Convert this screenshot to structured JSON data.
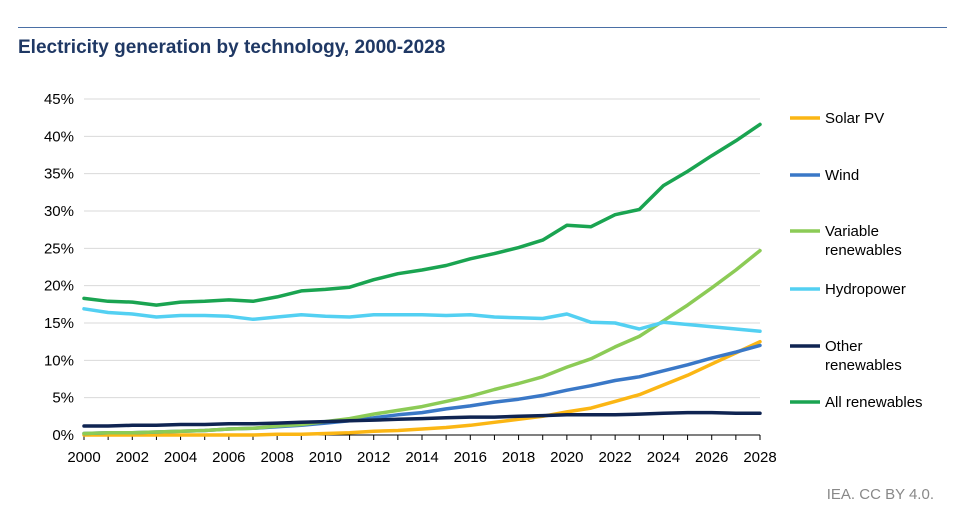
{
  "chart_data": {
    "type": "line",
    "title": "Electricity generation by technology, 2000-2028",
    "xlabel": "",
    "ylabel": "",
    "ylim": [
      0,
      45
    ],
    "xlim": [
      2000,
      2028
    ],
    "grid": true,
    "legend_position": "right",
    "y_ticks": [
      "0%",
      "5%",
      "10%",
      "15%",
      "20%",
      "25%",
      "30%",
      "35%",
      "40%",
      "45%"
    ],
    "x_ticks": [
      "2000",
      "2002",
      "2004",
      "2006",
      "2008",
      "2010",
      "2012",
      "2014",
      "2016",
      "2018",
      "2020",
      "2022",
      "2024",
      "2026",
      "2028"
    ],
    "x": [
      2000,
      2001,
      2002,
      2003,
      2004,
      2005,
      2006,
      2007,
      2008,
      2009,
      2010,
      2011,
      2012,
      2013,
      2014,
      2015,
      2016,
      2017,
      2018,
      2019,
      2020,
      2021,
      2022,
      2023,
      2024,
      2025,
      2026,
      2027,
      2028
    ],
    "series": [
      {
        "name": "Solar PV",
        "legend_lines": [
          "Solar PV"
        ],
        "color": "#fbb614",
        "values": [
          0,
          0,
          0,
          0,
          0,
          0,
          0,
          0,
          0.1,
          0.1,
          0.2,
          0.3,
          0.5,
          0.6,
          0.8,
          1.0,
          1.3,
          1.7,
          2.1,
          2.5,
          3.1,
          3.6,
          4.5,
          5.4,
          6.7,
          8.0,
          9.5,
          11.0,
          12.5
        ]
      },
      {
        "name": "Wind",
        "legend_lines": [
          "Wind"
        ],
        "color": "#3a78c7",
        "values": [
          0.2,
          0.3,
          0.3,
          0.4,
          0.5,
          0.6,
          0.8,
          0.9,
          1.1,
          1.3,
          1.6,
          1.9,
          2.3,
          2.7,
          3.0,
          3.5,
          3.9,
          4.4,
          4.8,
          5.3,
          6.0,
          6.6,
          7.3,
          7.8,
          8.6,
          9.4,
          10.3,
          11.1,
          12.0
        ]
      },
      {
        "name": "Variable renewables",
        "legend_lines": [
          "Variable",
          "renewables"
        ],
        "color": "#8ccb56",
        "values": [
          0.2,
          0.3,
          0.3,
          0.4,
          0.5,
          0.6,
          0.8,
          0.9,
          1.2,
          1.4,
          1.8,
          2.2,
          2.8,
          3.3,
          3.8,
          4.5,
          5.2,
          6.1,
          6.9,
          7.8,
          9.1,
          10.2,
          11.8,
          13.2,
          15.3,
          17.4,
          19.7,
          22.1,
          24.7
        ]
      },
      {
        "name": "Hydropower",
        "legend_lines": [
          "Hydropower"
        ],
        "color": "#53d0f2",
        "values": [
          16.9,
          16.4,
          16.2,
          15.8,
          16.0,
          16.0,
          15.9,
          15.5,
          15.8,
          16.1,
          15.9,
          15.8,
          16.1,
          16.1,
          16.1,
          16.0,
          16.1,
          15.8,
          15.7,
          15.6,
          16.2,
          15.1,
          15.0,
          14.2,
          15.1,
          14.8,
          14.5,
          14.2,
          13.9
        ]
      },
      {
        "name": "Other renewables",
        "legend_lines": [
          "Other",
          "renewables"
        ],
        "color": "#0f2452",
        "values": [
          1.2,
          1.2,
          1.3,
          1.3,
          1.4,
          1.4,
          1.5,
          1.5,
          1.6,
          1.7,
          1.8,
          1.9,
          2.0,
          2.1,
          2.2,
          2.3,
          2.4,
          2.4,
          2.5,
          2.6,
          2.7,
          2.7,
          2.7,
          2.8,
          2.9,
          3.0,
          3.0,
          2.9,
          2.9
        ]
      },
      {
        "name": "All renewables",
        "legend_lines": [
          "All renewables"
        ],
        "color": "#1aa451",
        "values": [
          18.3,
          17.9,
          17.8,
          17.4,
          17.8,
          17.9,
          18.1,
          17.9,
          18.5,
          19.3,
          19.5,
          19.8,
          20.8,
          21.6,
          22.1,
          22.7,
          23.6,
          24.3,
          25.1,
          26.1,
          28.1,
          27.9,
          29.5,
          30.2,
          33.4,
          35.3,
          37.4,
          39.4,
          41.6
        ]
      }
    ]
  },
  "footer": {
    "source": "IEA. CC BY 4.0."
  }
}
